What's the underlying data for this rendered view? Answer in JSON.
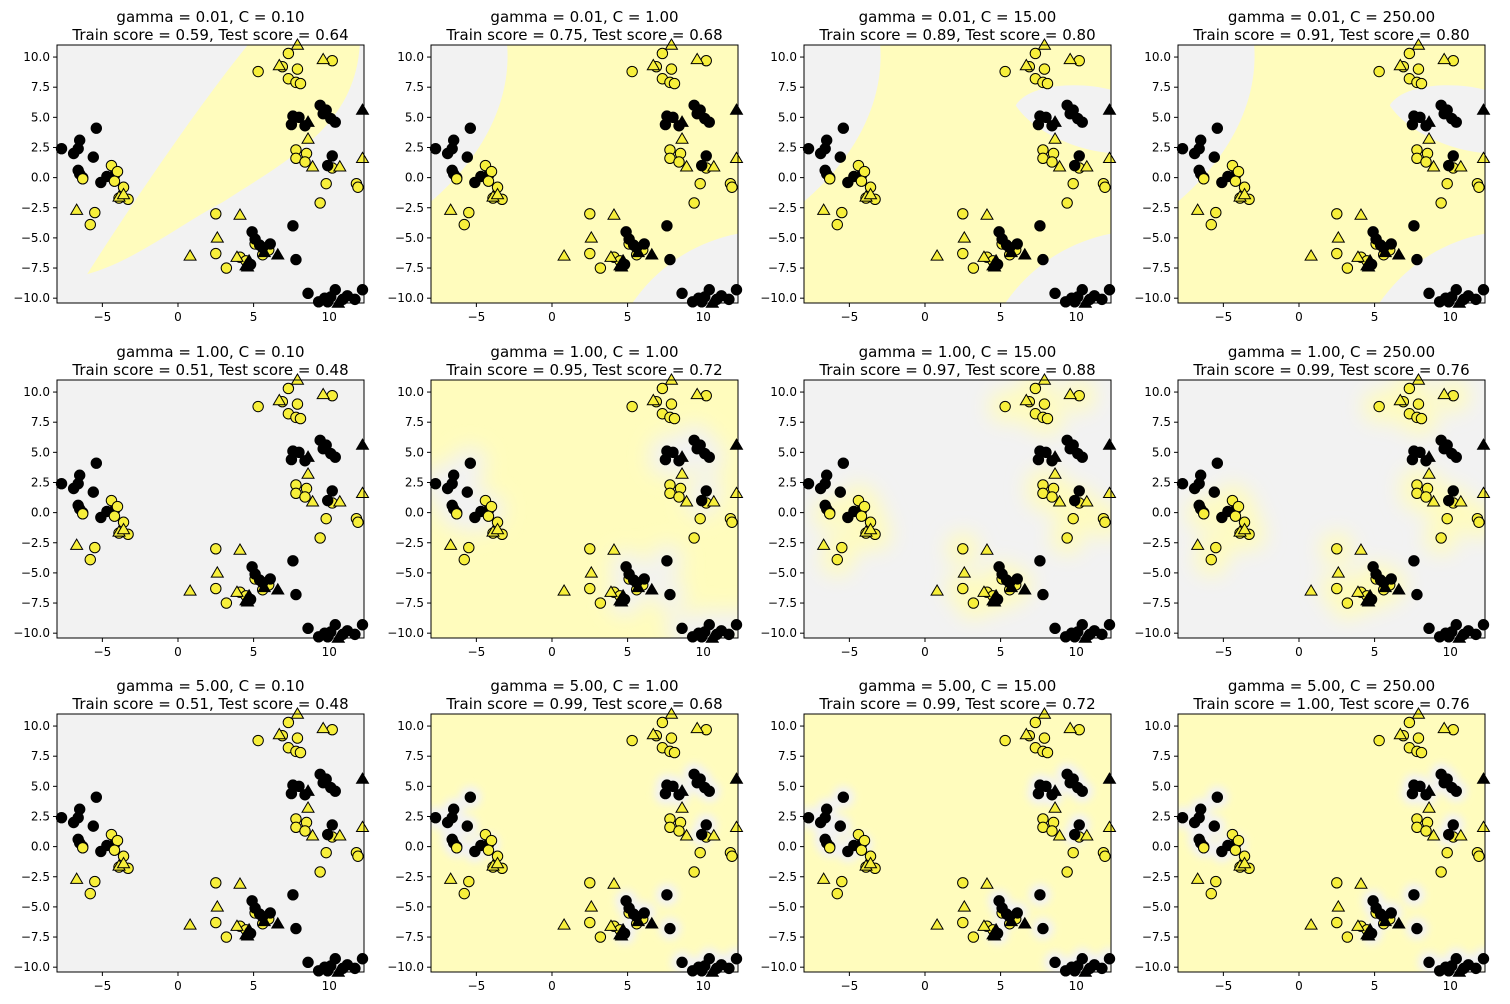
{
  "colors": {
    "background_class0": "#f2f2f2",
    "background_class1": "#fffcbd",
    "class0_marker": "#000000",
    "class1_marker": "#f7ef3b",
    "edge": "#000000"
  },
  "chart_data": {
    "type": "scatter",
    "grid": {
      "rows": 3,
      "cols": 4
    },
    "xlim": [
      -8.0,
      12.3
    ],
    "ylim": [
      -10.4,
      11.0
    ],
    "xticks": [
      -5,
      0,
      5,
      10
    ],
    "yticks": [
      -10.0,
      -7.5,
      -5.0,
      -2.5,
      0.0,
      2.5,
      5.0,
      7.5,
      10.0
    ],
    "xtick_labels": [
      "−5",
      "0",
      "5",
      "10"
    ],
    "ytick_labels": [
      "−10.0",
      "−7.5",
      "−5.0",
      "−2.5",
      "0.0",
      "2.5",
      "5.0",
      "7.5",
      "10.0"
    ],
    "legend": "none",
    "marker_key": {
      "circle": "training points",
      "triangle": "test points"
    },
    "panels": [
      {
        "gamma": 0.01,
        "C": 0.1,
        "title1": "gamma = 0.01, C = 0.10",
        "title2": "Train score = 0.59, Test score = 0.64"
      },
      {
        "gamma": 0.01,
        "C": 1.0,
        "title1": "gamma = 0.01, C = 1.00",
        "title2": "Train score = 0.75, Test score = 0.68"
      },
      {
        "gamma": 0.01,
        "C": 15.0,
        "title1": "gamma = 0.01, C = 15.00",
        "title2": "Train score = 0.89, Test score = 0.80"
      },
      {
        "gamma": 0.01,
        "C": 250.0,
        "title1": "gamma = 0.01, C = 250.00",
        "title2": "Train score = 0.91, Test score = 0.80"
      },
      {
        "gamma": 1.0,
        "C": 0.1,
        "title1": "gamma = 1.00, C = 0.10",
        "title2": "Train score = 0.51, Test score = 0.48"
      },
      {
        "gamma": 1.0,
        "C": 1.0,
        "title1": "gamma = 1.00, C = 1.00",
        "title2": "Train score = 0.95, Test score = 0.72"
      },
      {
        "gamma": 1.0,
        "C": 15.0,
        "title1": "gamma = 1.00, C = 15.00",
        "title2": "Train score = 0.97, Test score = 0.88"
      },
      {
        "gamma": 1.0,
        "C": 250.0,
        "title1": "gamma = 1.00, C = 250.00",
        "title2": "Train score = 0.99, Test score = 0.76"
      },
      {
        "gamma": 5.0,
        "C": 0.1,
        "title1": "gamma = 5.00, C = 0.10",
        "title2": "Train score = 0.51, Test score = 0.48"
      },
      {
        "gamma": 5.0,
        "C": 1.0,
        "title1": "gamma = 5.00, C = 1.00",
        "title2": "Train score = 0.99, Test score = 0.68"
      },
      {
        "gamma": 5.0,
        "C": 15.0,
        "title1": "gamma = 5.00, C = 15.00",
        "title2": "Train score = 0.99, Test score = 0.72"
      },
      {
        "gamma": 5.0,
        "C": 250.0,
        "title1": "gamma = 5.00, C = 250.00",
        "title2": "Train score = 1.00, Test score = 0.76"
      }
    ],
    "train_points": [
      [
        -7.7,
        2.4,
        0
      ],
      [
        -6.9,
        2.0,
        0
      ],
      [
        -6.6,
        2.4,
        0
      ],
      [
        -6.5,
        3.1,
        0
      ],
      [
        -6.6,
        0.6,
        0
      ],
      [
        -6.5,
        0.3,
        0
      ],
      [
        -6.3,
        0.0,
        0
      ],
      [
        -5.4,
        4.1,
        0
      ],
      [
        -5.6,
        1.7,
        0
      ],
      [
        -5.1,
        -0.4,
        0
      ],
      [
        -4.7,
        0.1,
        0
      ],
      [
        -4.2,
        0.2,
        0
      ],
      [
        -4.4,
        1.0,
        1
      ],
      [
        -4.0,
        0.5,
        1
      ],
      [
        -4.2,
        -0.3,
        1
      ],
      [
        -3.6,
        -0.8,
        1
      ],
      [
        -3.3,
        -1.8,
        1
      ],
      [
        -3.9,
        -1.7,
        1
      ],
      [
        -6.3,
        -0.1,
        1
      ],
      [
        -5.8,
        -3.9,
        1
      ],
      [
        -5.5,
        -2.9,
        1
      ],
      [
        5.3,
        8.8,
        1
      ],
      [
        6.9,
        9.2,
        1
      ],
      [
        7.3,
        10.3,
        1
      ],
      [
        7.9,
        9.0,
        1
      ],
      [
        7.3,
        8.2,
        1
      ],
      [
        7.8,
        7.9,
        1
      ],
      [
        8.1,
        7.8,
        1
      ],
      [
        10.2,
        9.7,
        1
      ],
      [
        7.6,
        5.1,
        0
      ],
      [
        8.0,
        5.0,
        0
      ],
      [
        7.5,
        4.4,
        0
      ],
      [
        8.4,
        4.3,
        0
      ],
      [
        9.4,
        6.0,
        0
      ],
      [
        9.6,
        5.3,
        0
      ],
      [
        10.1,
        4.9,
        0
      ],
      [
        10.4,
        4.6,
        0
      ],
      [
        9.8,
        5.6,
        0
      ],
      [
        7.8,
        2.3,
        1
      ],
      [
        8.5,
        2.0,
        1
      ],
      [
        7.8,
        1.6,
        1
      ],
      [
        8.4,
        1.3,
        1
      ],
      [
        10.2,
        0.8,
        1
      ],
      [
        11.8,
        -0.5,
        1
      ],
      [
        11.9,
        -0.8,
        1
      ],
      [
        9.4,
        -2.1,
        1
      ],
      [
        9.8,
        -0.5,
        1
      ],
      [
        10.2,
        1.8,
        0
      ],
      [
        9.9,
        1.0,
        0
      ],
      [
        2.5,
        -3.0,
        1
      ],
      [
        2.5,
        -6.3,
        1
      ],
      [
        3.2,
        -7.5,
        1
      ],
      [
        4.1,
        -6.6,
        1
      ],
      [
        4.5,
        -6.9,
        1
      ],
      [
        5.1,
        -5.5,
        1
      ],
      [
        5.6,
        -6.4,
        1
      ],
      [
        6.0,
        -6.0,
        1
      ],
      [
        4.9,
        -4.5,
        0
      ],
      [
        5.1,
        -5.1,
        0
      ],
      [
        5.4,
        -5.6,
        0
      ],
      [
        5.6,
        -5.8,
        0
      ],
      [
        6.1,
        -5.5,
        0
      ],
      [
        7.6,
        -4.0,
        0
      ],
      [
        7.8,
        -6.8,
        0
      ],
      [
        4.8,
        -7.2,
        0
      ],
      [
        8.6,
        -9.6,
        0
      ],
      [
        9.3,
        -10.3,
        0
      ],
      [
        9.7,
        -10.0,
        0
      ],
      [
        10.1,
        -9.9,
        0
      ],
      [
        10.4,
        -9.3,
        0
      ],
      [
        10.9,
        -10.1,
        0
      ],
      [
        11.2,
        -9.8,
        0
      ],
      [
        11.7,
        -10.1,
        0
      ],
      [
        12.2,
        -9.3,
        0
      ],
      [
        9.9,
        -10.3,
        0
      ]
    ],
    "test_points": [
      [
        -6.7,
        -2.7,
        1
      ],
      [
        -3.9,
        -1.6,
        1
      ],
      [
        -3.6,
        -1.4,
        1
      ],
      [
        0.8,
        -6.5,
        1
      ],
      [
        2.6,
        -5.0,
        1
      ],
      [
        4.1,
        -3.1,
        1
      ],
      [
        3.9,
        -6.6,
        1
      ],
      [
        4.7,
        -6.9,
        0
      ],
      [
        4.5,
        -7.3,
        0
      ],
      [
        5.7,
        -6.2,
        0
      ],
      [
        6.6,
        -6.4,
        0
      ],
      [
        4.6,
        -7.4,
        0
      ],
      [
        6.7,
        9.3,
        1
      ],
      [
        7.9,
        11.0,
        1
      ],
      [
        9.6,
        9.8,
        1
      ],
      [
        8.6,
        3.2,
        1
      ],
      [
        8.9,
        0.9,
        1
      ],
      [
        10.7,
        0.9,
        1
      ],
      [
        12.2,
        1.6,
        1
      ],
      [
        8.6,
        4.6,
        0
      ],
      [
        12.2,
        5.6,
        0
      ],
      [
        10.6,
        -10.4,
        0
      ]
    ]
  }
}
